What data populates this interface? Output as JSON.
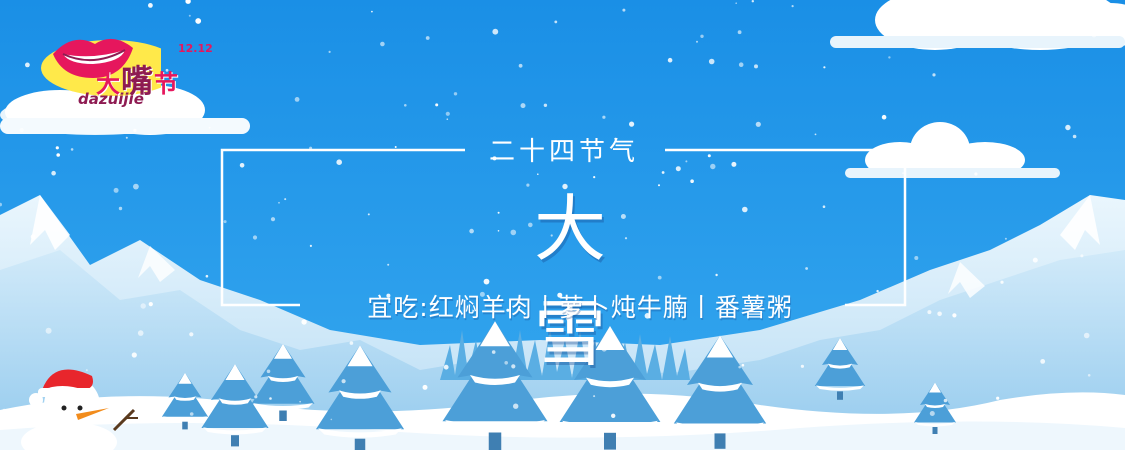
{
  "brand": {
    "name_part1": "大",
    "name_part2": "嘴",
    "name_part3": "节",
    "latin": "dazuijie",
    "date": "12.12"
  },
  "banner": {
    "subtitle": "二十四节气",
    "title": "大 雪",
    "diet": "宜吃:红焖羊肉丨萝卜炖牛腩丨番薯粥"
  },
  "colors": {
    "sky_top": "#1a8fe6",
    "sky_bottom": "#2fa4ee",
    "snow": "#ffffff",
    "mountain_light": "#dff0fb",
    "mountain_mid": "#a9d6f2",
    "tree": "#4c9fd8",
    "brand_pink": "#e6175d",
    "brand_yellow": "#ffe94a"
  },
  "icons": [
    "lips-icon",
    "snowman-icon",
    "cloud-icon",
    "pine-tree-icon",
    "snowflake-icon"
  ]
}
